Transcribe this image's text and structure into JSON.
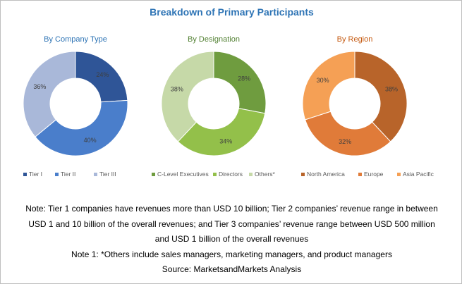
{
  "title": "Breakdown of Primary Participants",
  "chart_data": [
    {
      "type": "pie",
      "title": "By Company Type",
      "title_color": "#2e74b5",
      "categories": [
        "Tier I",
        "Tier II",
        "Tier III"
      ],
      "values": [
        24,
        40,
        36
      ],
      "value_labels": [
        "24%",
        "40%",
        "36%"
      ],
      "colors": [
        "#2f5597",
        "#4a7ecb",
        "#a9b8d9"
      ],
      "legend": "bottom"
    },
    {
      "type": "pie",
      "title": "By Designation",
      "title_color": "#548235",
      "categories": [
        "C-Level Executives",
        "Directors",
        "Others*"
      ],
      "values": [
        28,
        34,
        38
      ],
      "value_labels": [
        "28%",
        "34%",
        "38%"
      ],
      "colors": [
        "#6f9c3f",
        "#93c04a",
        "#c6d9a8"
      ],
      "legend": "bottom"
    },
    {
      "type": "pie",
      "title": "By Region",
      "title_color": "#c55a11",
      "categories": [
        "North America",
        "Europe",
        "Asia Pacific"
      ],
      "values": [
        38,
        32,
        30
      ],
      "value_labels": [
        "38%",
        "32%",
        "30%"
      ],
      "colors": [
        "#b8642a",
        "#e07b39",
        "#f5a055"
      ],
      "legend": "bottom"
    }
  ],
  "notes": {
    "line1": "Note: Tier 1 companies have revenues more than USD 10 billion; Tier 2 companies’ revenue range in between",
    "line2": "USD 1 and 10 billion of the overall revenues; and Tier 3 companies’ revenue range between USD 500 million",
    "line3": "and USD 1 billion of the overall revenues",
    "line4": "Note 1: *Others include sales managers, marketing managers, and product managers",
    "source": "Source: MarketsandMarkets Analysis"
  }
}
